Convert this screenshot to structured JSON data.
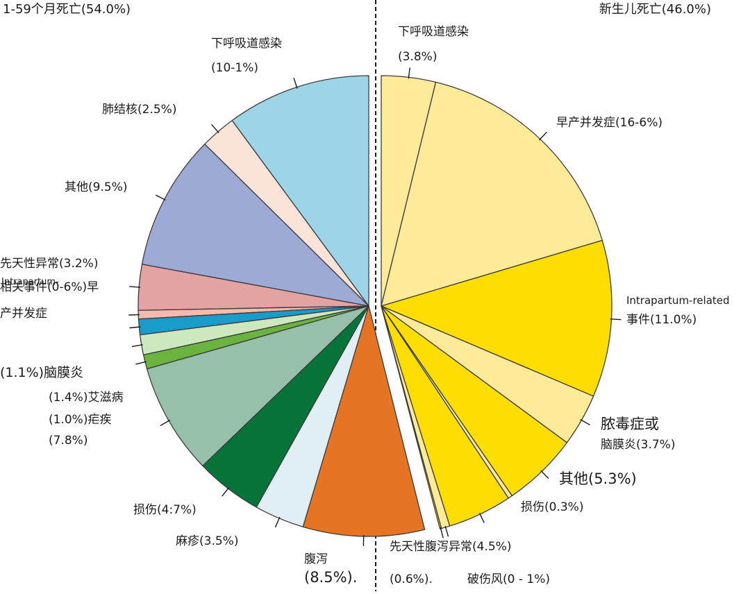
{
  "chart_data": {
    "type": "pie",
    "title": "",
    "groups": [
      {
        "name": "1-59个月死亡(54.0%)",
        "slices": [
          {
            "label_lines": [
              "下呼吸道感染",
              "(10-1%)"
            ],
            "value": 10.1,
            "color": "#9dd4e8"
          },
          {
            "label_lines": [
              "肺结核(2.5%)"
            ],
            "value": 2.5,
            "color": "#fbe3da"
          },
          {
            "label_lines": [
              "其他(9.5%)"
            ],
            "value": 9.5,
            "color": "#9eaad6"
          },
          {
            "label_lines": [
              "先天性异常(3.2%)"
            ],
            "value": 3.2,
            "color": "#e3a3a3"
          },
          {
            "label_lines": [
              "Intrapartum-",
              "相关事件(0-6%)早",
              "产并发症"
            ],
            "value": 0.6,
            "color": "#f5b9ad"
          },
          {
            "label_lines": [],
            "value": 1.1,
            "color": "#199ccb"
          },
          {
            "label_lines": [
              "(1.1%)脑膜炎"
            ],
            "value": 1.4,
            "color": "#cde7bf"
          },
          {
            "label_lines": [
              "(1.4%)艾滋病"
            ],
            "value": 1.0,
            "color": "#6ab33f"
          },
          {
            "label_lines": [
              "(1.0%)疟疾",
              "(7.8%)"
            ],
            "value": 7.8,
            "color": "#97c0aa"
          },
          {
            "label_lines": [
              "损伤(4:7%)"
            ],
            "value": 4.7,
            "color": "#067338"
          },
          {
            "label_lines": [
              "麻疹(3.5%)"
            ],
            "value": 3.5,
            "color": "#e0eff4"
          },
          {
            "label_lines": [
              "腹泻",
              "(8.5%)."
            ],
            "value": 8.5,
            "color": "#e67425"
          }
        ]
      },
      {
        "name": "新生儿死亡(46.0%)",
        "slices": [
          {
            "label_lines": [
              "下呼吸道感染",
              "(3.8%)"
            ],
            "value": 3.8,
            "color": "#feeb9a"
          },
          {
            "label_lines": [
              "早产并发症(16-6%)"
            ],
            "value": 16.6,
            "color": "#feeb9a"
          },
          {
            "label_lines": [
              "Intrapartum-related",
              "事件(11.0%)"
            ],
            "value": 11.0,
            "color": "#fedd00"
          },
          {
            "label_lines": [
              "脓毒症或",
              "脑膜炎(3.7%)"
            ],
            "value": 3.7,
            "color": "#feeb9a"
          },
          {
            "label_lines": [
              "其他(5.3%)"
            ],
            "value": 5.3,
            "color": "#fedd00"
          },
          {
            "label_lines": [
              "损伤(0.3%)"
            ],
            "value": 0.3,
            "color": "#feeb9a"
          },
          {
            "label_lines": [
              "先天性腹泻异常(4.5%)"
            ],
            "value": 4.5,
            "color": "#fedd00"
          },
          {
            "label_lines": [
              "(0.6%)."
            ],
            "value": 0.6,
            "color": "#feeb9a"
          },
          {
            "label_lines": [
              "破伤风(0 - 1%)"
            ],
            "value": 0.1,
            "color": "#fedd00"
          }
        ]
      }
    ],
    "legend": "none"
  }
}
